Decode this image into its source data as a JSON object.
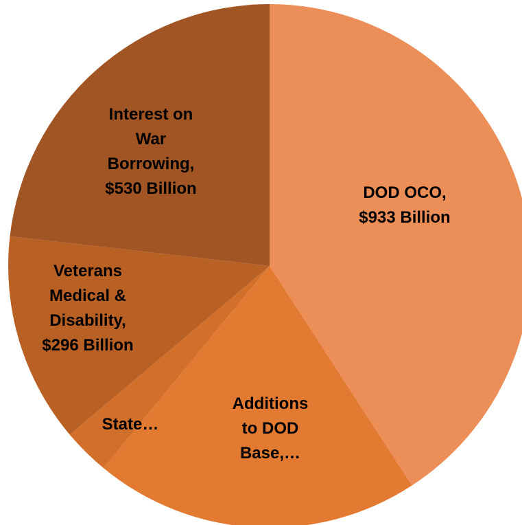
{
  "chart_data": {
    "type": "pie",
    "title": "",
    "slices": [
      {
        "label": "DOD OCO, $933 Billion",
        "lines": [
          "DOD OCO,",
          "$933 Billion"
        ],
        "value": 933,
        "color": "#EC8E58"
      },
      {
        "label": "Additions to DOD Base,…",
        "lines": [
          "Additions",
          "to DOD",
          "Base,…"
        ],
        "value": 460,
        "color": "#E37A32"
      },
      {
        "label": "State…",
        "lines": [
          "State…"
        ],
        "value": 66,
        "color": "#D26F2B"
      },
      {
        "label": "Veterans Medical & Disability, $296 Billion",
        "lines": [
          "Veterans",
          "Medical &",
          "Disability,",
          "$296 Billion"
        ],
        "value": 296,
        "color": "#B96025"
      },
      {
        "label": "Interest on War Borrowing, $530 Billion",
        "lines": [
          "Interest on",
          "War",
          "Borrowing,",
          "$530 Billion"
        ],
        "value": 530,
        "color": "#A25524"
      }
    ]
  }
}
